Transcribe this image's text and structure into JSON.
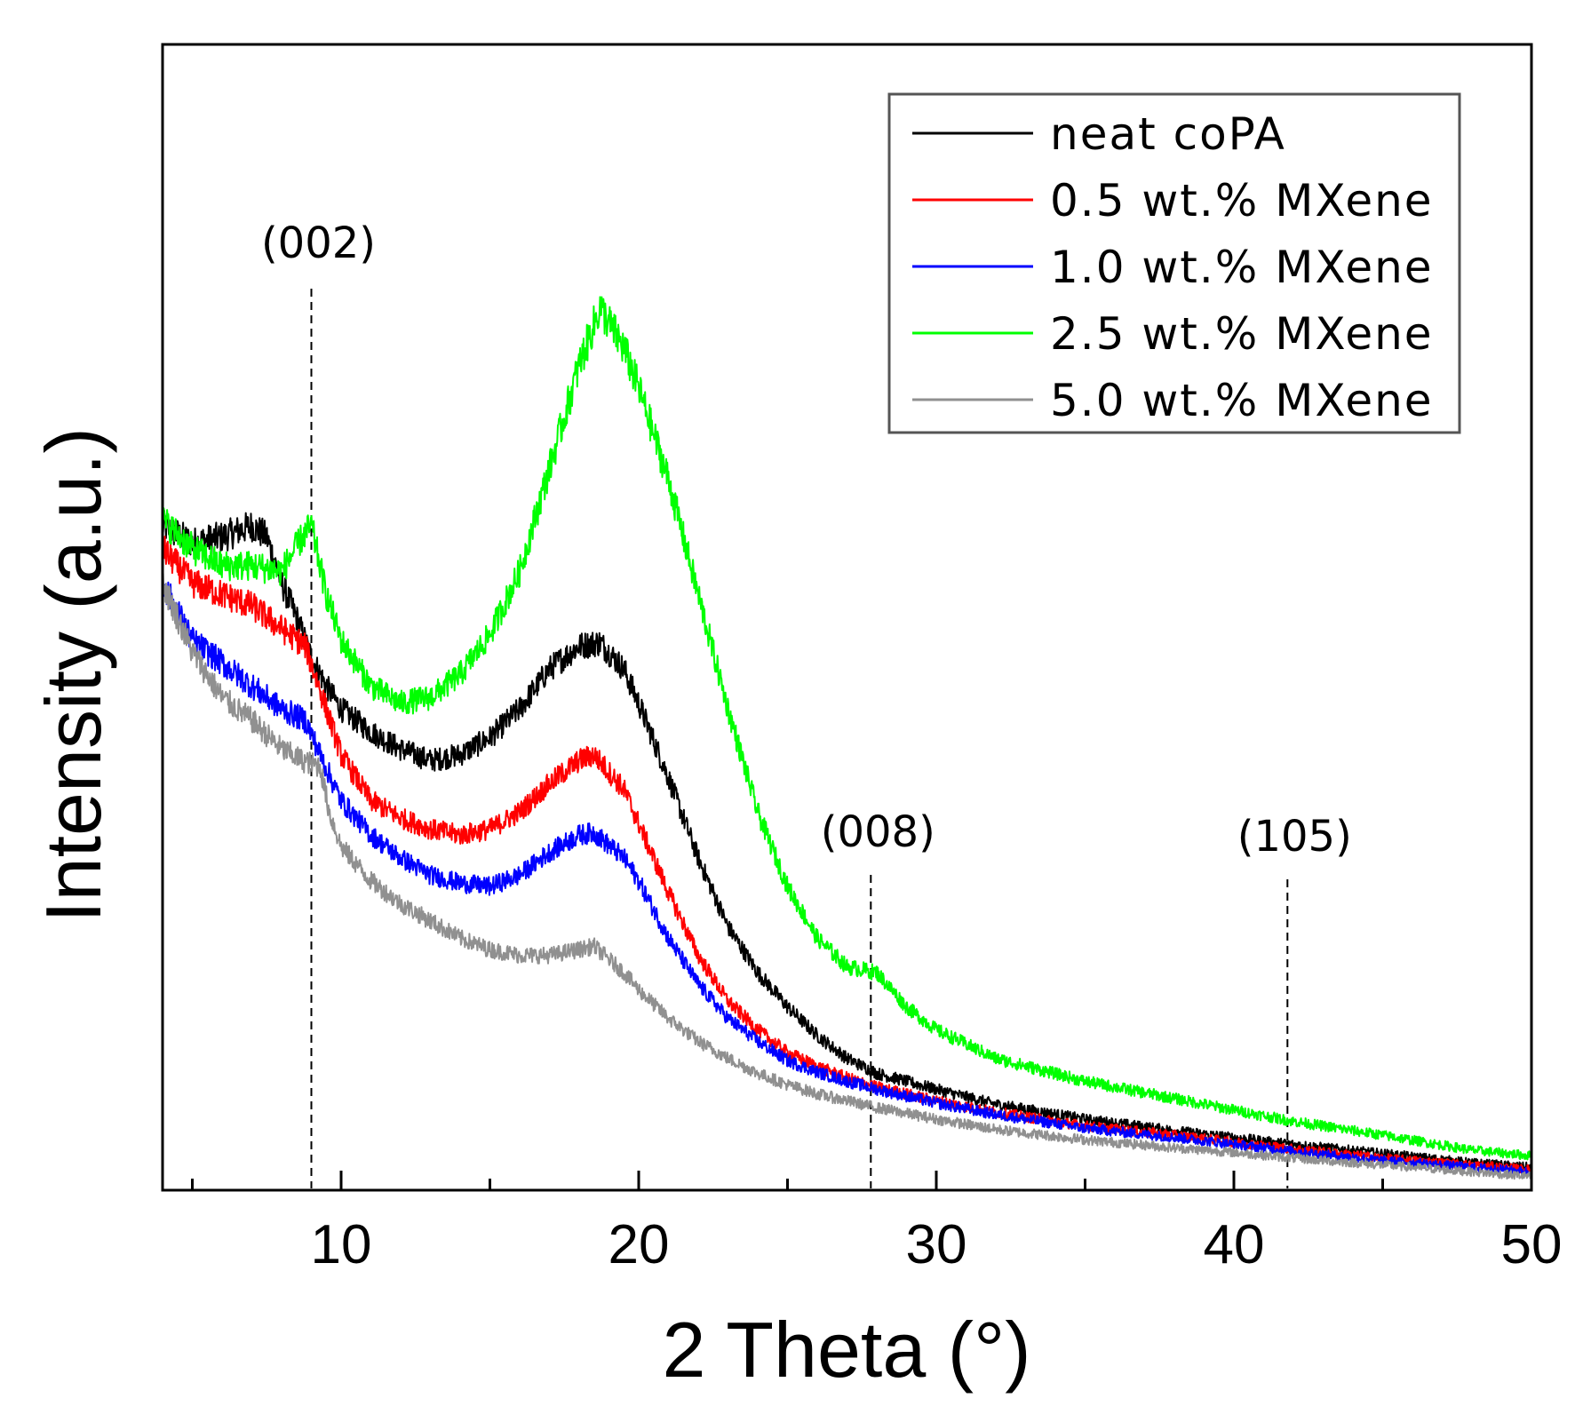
{
  "chart_data": {
    "type": "line",
    "title": "",
    "xlabel": "2 Theta (°)",
    "ylabel": "Intensity (a.u.)",
    "xlim": [
      4,
      50
    ],
    "ylim": [
      0,
      100
    ],
    "xticks": [
      10,
      20,
      30,
      40,
      50
    ],
    "x_tick_labels": [
      "10",
      "20",
      "30",
      "40",
      "50"
    ],
    "y_ticks_shown": false,
    "legend": {
      "position": "top-right"
    },
    "annotations": [
      {
        "label": "(002)",
        "x": 9.0
      },
      {
        "label": "(008)",
        "x": 27.8
      },
      {
        "label": "(105)",
        "x": 41.8
      }
    ],
    "series": [
      {
        "name": "neat coPA",
        "color": "#000000",
        "points": [
          [
            4,
            58
          ],
          [
            5,
            56.5
          ],
          [
            6,
            57
          ],
          [
            7,
            58
          ],
          [
            7.5,
            57
          ],
          [
            8,
            53
          ],
          [
            8.5,
            50
          ],
          [
            9,
            46.5
          ],
          [
            9.5,
            44
          ],
          [
            10,
            42
          ],
          [
            11,
            40
          ],
          [
            12,
            38.5
          ],
          [
            13,
            37.5
          ],
          [
            14,
            38
          ],
          [
            15,
            39.5
          ],
          [
            16,
            42
          ],
          [
            17,
            45.5
          ],
          [
            18,
            47.5
          ],
          [
            18.7,
            47.8
          ],
          [
            19.5,
            45.5
          ],
          [
            20,
            42.5
          ],
          [
            21,
            36
          ],
          [
            22,
            29
          ],
          [
            23,
            23
          ],
          [
            24,
            19
          ],
          [
            25,
            16
          ],
          [
            26,
            13.5
          ],
          [
            27,
            11.5
          ],
          [
            28,
            10.2
          ],
          [
            30,
            8.8
          ],
          [
            32,
            7.5
          ],
          [
            35,
            6.2
          ],
          [
            38,
            5.2
          ],
          [
            40,
            4.6
          ],
          [
            42,
            4
          ],
          [
            45,
            3.2
          ],
          [
            48,
            2.4
          ],
          [
            50,
            2
          ]
        ]
      },
      {
        "name": "0.5 wt.% MXene",
        "color": "#ff0000",
        "points": [
          [
            4,
            56
          ],
          [
            5,
            53
          ],
          [
            6,
            52
          ],
          [
            7,
            51
          ],
          [
            8,
            49
          ],
          [
            8.8,
            47.5
          ],
          [
            9.5,
            42
          ],
          [
            10,
            38
          ],
          [
            11,
            34
          ],
          [
            12,
            32.5
          ],
          [
            13,
            31.5
          ],
          [
            14,
            31
          ],
          [
            15,
            31.5
          ],
          [
            16,
            33
          ],
          [
            17,
            35.5
          ],
          [
            18,
            37.5
          ],
          [
            18.5,
            38
          ],
          [
            19.5,
            35
          ],
          [
            20,
            32
          ],
          [
            21,
            26
          ],
          [
            22,
            20.5
          ],
          [
            23,
            16.5
          ],
          [
            24,
            14
          ],
          [
            25,
            12
          ],
          [
            26,
            10.8
          ],
          [
            27,
            9.8
          ],
          [
            28,
            9
          ],
          [
            30,
            7.8
          ],
          [
            32,
            6.8
          ],
          [
            35,
            5.6
          ],
          [
            38,
            4.8
          ],
          [
            40,
            4.2
          ],
          [
            42,
            3.6
          ],
          [
            45,
            2.8
          ],
          [
            48,
            2.2
          ],
          [
            50,
            1.8
          ]
        ]
      },
      {
        "name": "1.0 wt.% MXene",
        "color": "#0000ff",
        "points": [
          [
            4,
            53
          ],
          [
            5,
            48
          ],
          [
            6,
            46
          ],
          [
            7,
            44
          ],
          [
            8,
            42
          ],
          [
            8.8,
            41
          ],
          [
            9.3,
            38
          ],
          [
            10,
            34
          ],
          [
            11,
            31
          ],
          [
            12,
            29
          ],
          [
            13,
            27.5
          ],
          [
            14,
            26.8
          ],
          [
            15,
            26.5
          ],
          [
            16,
            27.5
          ],
          [
            17,
            29.5
          ],
          [
            18,
            31
          ],
          [
            18.5,
            31.2
          ],
          [
            19.5,
            29
          ],
          [
            20,
            27
          ],
          [
            21,
            22
          ],
          [
            22,
            18
          ],
          [
            23,
            15
          ],
          [
            24,
            13
          ],
          [
            25,
            11.3
          ],
          [
            26,
            10.3
          ],
          [
            27,
            9.5
          ],
          [
            28,
            8.8
          ],
          [
            30,
            7.6
          ],
          [
            32,
            6.6
          ],
          [
            35,
            5.4
          ],
          [
            38,
            4.6
          ],
          [
            40,
            4
          ],
          [
            42,
            3.4
          ],
          [
            45,
            2.6
          ],
          [
            48,
            2
          ],
          [
            50,
            1.6
          ]
        ]
      },
      {
        "name": "2.5 wt.% MXene",
        "color": "#00ff00",
        "points": [
          [
            4,
            58.5
          ],
          [
            5,
            56
          ],
          [
            6,
            54.5
          ],
          [
            7,
            54.5
          ],
          [
            8,
            54
          ],
          [
            8.7,
            57
          ],
          [
            9,
            58
          ],
          [
            9.5,
            52
          ],
          [
            10,
            48
          ],
          [
            11,
            44
          ],
          [
            12,
            42.5
          ],
          [
            13,
            43
          ],
          [
            14,
            45
          ],
          [
            15,
            48.5
          ],
          [
            16,
            54
          ],
          [
            17,
            63
          ],
          [
            18,
            72
          ],
          [
            18.7,
            77
          ],
          [
            19.5,
            73.5
          ],
          [
            20,
            70
          ],
          [
            21,
            62
          ],
          [
            22,
            52
          ],
          [
            23,
            42
          ],
          [
            24,
            33
          ],
          [
            25,
            26.5
          ],
          [
            26,
            22
          ],
          [
            27,
            19.5
          ],
          [
            28,
            19
          ],
          [
            29,
            16
          ],
          [
            30,
            14
          ],
          [
            32,
            11.5
          ],
          [
            35,
            9.5
          ],
          [
            38,
            8
          ],
          [
            40,
            7
          ],
          [
            42,
            6
          ],
          [
            45,
            4.8
          ],
          [
            48,
            3.5
          ],
          [
            50,
            3
          ]
        ]
      },
      {
        "name": "5.0 wt.% MXene",
        "color": "#909090",
        "points": [
          [
            4,
            53
          ],
          [
            5,
            47
          ],
          [
            6,
            43
          ],
          [
            7,
            41
          ],
          [
            8,
            38.5
          ],
          [
            8.7,
            37.5
          ],
          [
            9.3,
            37
          ],
          [
            9.6,
            33
          ],
          [
            10,
            30
          ],
          [
            11,
            27
          ],
          [
            12,
            25
          ],
          [
            13,
            23.5
          ],
          [
            14,
            22
          ],
          [
            15,
            21
          ],
          [
            16,
            20.5
          ],
          [
            17,
            20.5
          ],
          [
            18,
            21
          ],
          [
            18.5,
            21.3
          ],
          [
            19.5,
            19
          ],
          [
            20,
            17.5
          ],
          [
            21,
            15
          ],
          [
            22,
            13
          ],
          [
            23,
            11.5
          ],
          [
            24,
            10.2
          ],
          [
            25,
            9.2
          ],
          [
            26,
            8.4
          ],
          [
            27,
            7.8
          ],
          [
            28,
            7.2
          ],
          [
            30,
            6.2
          ],
          [
            32,
            5.3
          ],
          [
            35,
            4.4
          ],
          [
            38,
            3.7
          ],
          [
            40,
            3.3
          ],
          [
            42,
            2.8
          ],
          [
            45,
            2.2
          ],
          [
            48,
            1.6
          ],
          [
            50,
            1.2
          ]
        ]
      }
    ]
  }
}
